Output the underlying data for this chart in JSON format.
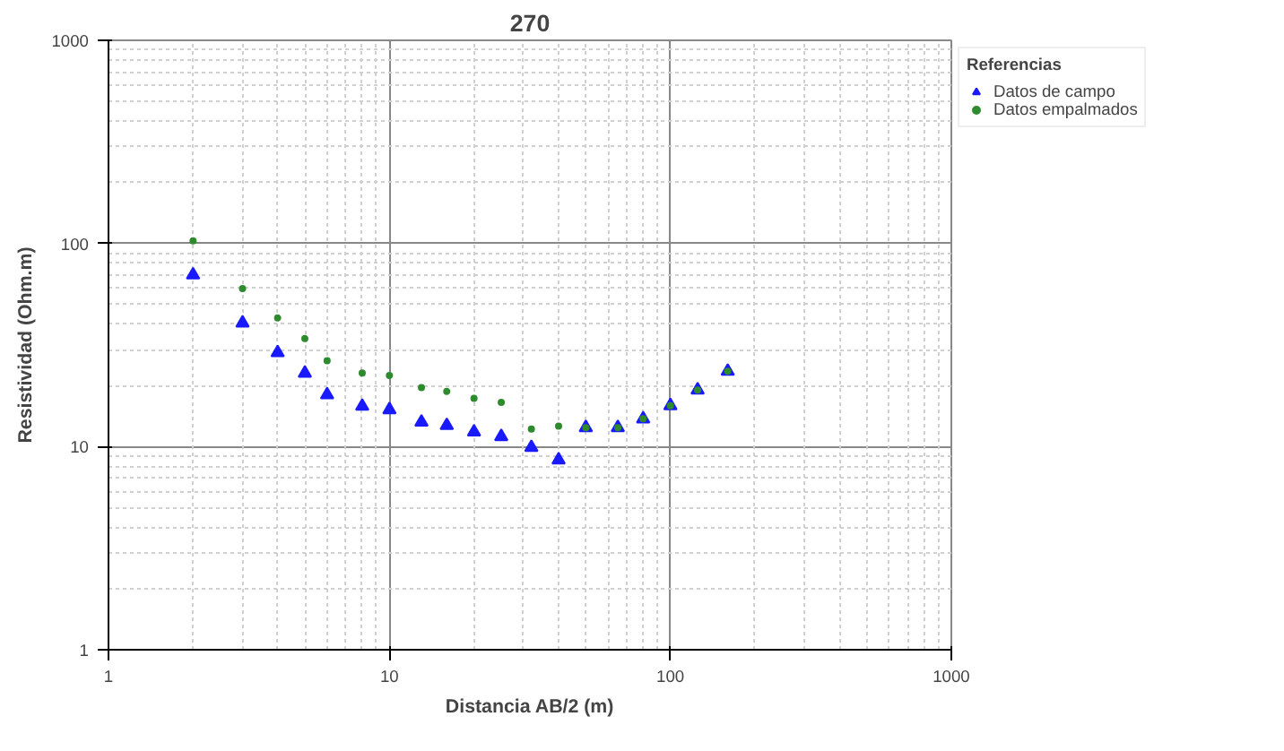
{
  "chart_data": {
    "type": "scatter",
    "title": "270",
    "xlabel": "Distancia AB/2 (m)",
    "ylabel": "Resistividad (Ohm.m)",
    "legend_title": "Referencias",
    "log": "xy",
    "grid": true,
    "legend": "top right",
    "xlim": [
      1,
      1000
    ],
    "ylim": [
      1,
      1000
    ],
    "xticks": [
      1,
      10,
      100,
      1000
    ],
    "yticks": [
      1,
      10,
      100,
      1000
    ],
    "x": [
      2,
      3,
      4,
      5,
      6,
      8,
      10,
      13,
      16,
      20,
      25,
      32,
      40,
      50,
      65,
      80,
      100,
      125,
      160
    ],
    "series": [
      {
        "name": "Datos de campo",
        "color": "#1a1aff",
        "marker": "triangle",
        "values": [
          70,
          40.6,
          29,
          23,
          18,
          15.8,
          15.2,
          13.2,
          12.7,
          11.8,
          11.2,
          9.9,
          8.6,
          12.4,
          12.4,
          13.7,
          15.9,
          19,
          23.5
        ]
      },
      {
        "name": "Datos empalmados",
        "color": "#2e8b2e",
        "marker": "circle",
        "values": [
          103,
          60,
          43,
          34,
          26.5,
          23,
          22.4,
          19.5,
          18.7,
          17.3,
          16.5,
          12.2,
          12.6,
          12.4,
          12.4,
          13.7,
          15.9,
          19,
          23.5
        ]
      }
    ]
  }
}
